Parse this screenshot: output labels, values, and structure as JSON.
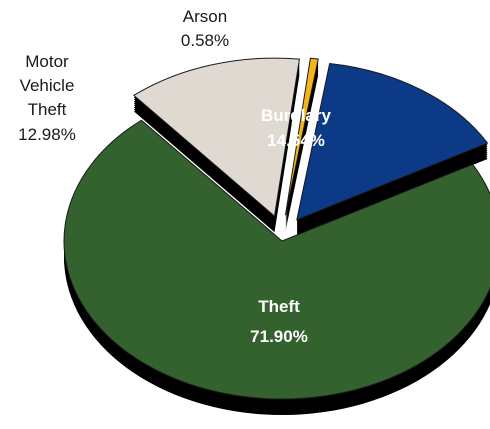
{
  "chart_data": {
    "type": "pie",
    "title": "",
    "slices": [
      {
        "label": "Theft",
        "value": 71.9,
        "value_label": "71.90%",
        "color": "#34622f",
        "exploded": false
      },
      {
        "label": "Motor Vehicle Theft",
        "label_lines": [
          "Motor",
          "Vehicle",
          "Theft"
        ],
        "value": 12.98,
        "value_label": "12.98%",
        "color": "#dfd9d1",
        "exploded": true
      },
      {
        "label": "Arson",
        "value": 0.58,
        "value_label": "0.58%",
        "color": "#f4b51c",
        "exploded": true
      },
      {
        "label": "Burglary",
        "value": 14.54,
        "value_label": "14.54%",
        "color": "#0c3a86",
        "exploded": true
      }
    ],
    "style": "3d-exploded-pie",
    "depth_color": "#000000"
  }
}
